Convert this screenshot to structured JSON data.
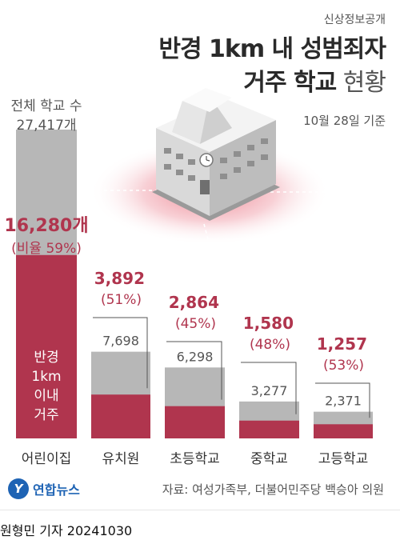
{
  "header": {
    "kicker": "신상정보공개",
    "title_line1": "반경 1km 내 성범죄자",
    "title_line2_bold": "거주 학교",
    "title_line2_light": "현황",
    "date": "10월 28일 기준"
  },
  "chart_data": {
    "type": "bar",
    "categories": [
      "어린이집",
      "유치원",
      "초등학교",
      "중학교",
      "고등학교"
    ],
    "total_label": [
      "전체 학교 수",
      "27,417개"
    ],
    "totals": [
      27417,
      7698,
      6298,
      3277,
      2371
    ],
    "total_labels": [
      "27,417개",
      "7,698",
      "6,298",
      "3,277",
      "2,371"
    ],
    "series": [
      {
        "values": [
          16280,
          3892,
          2864,
          1580,
          1257
        ]
      }
    ],
    "count_labels": [
      "16,280개",
      "3,892",
      "2,864",
      "1,580",
      "1,257"
    ],
    "pct_labels": [
      "(비율 59%)",
      "(51%)",
      "(45%)",
      "(48%)",
      "(53%)"
    ],
    "inside_label": [
      "반경",
      "1km",
      "이내",
      "거주"
    ],
    "colors": {
      "total": "#b7b7b7",
      "near": "#b0354e",
      "near_text": "#b0354e"
    }
  },
  "footer": {
    "logo_mark": "Y",
    "logo_text": "연합뉴스",
    "source": "자료: 여성가족부, 더불어민주당 백승아 의원",
    "credit": "원형민 기자  20241030"
  }
}
